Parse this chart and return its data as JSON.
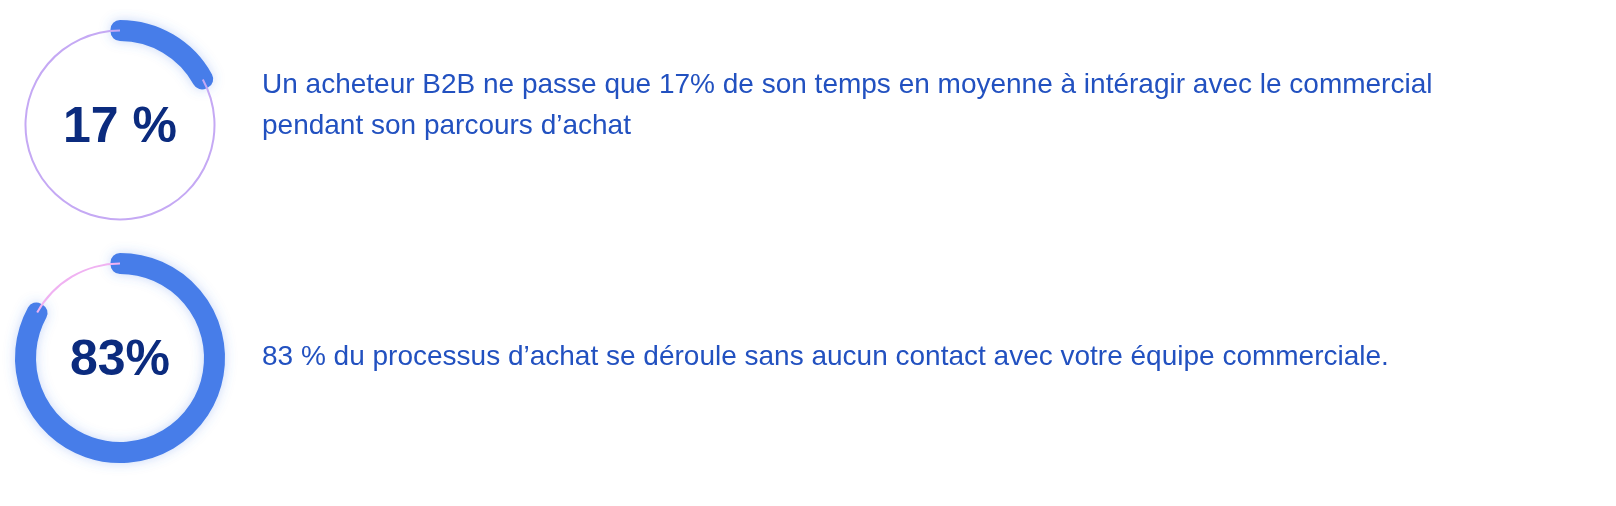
{
  "chart_data": [
    {
      "type": "donut",
      "categories": [
        null,
        null
      ],
      "values": [
        17,
        83
      ],
      "colors": [
        "#477de9",
        "#c5a9f4"
      ],
      "annotations": [
        "17 %",
        "Un acheteur B2B ne passe que 17% de son temps en moyenne à intéragir avec le commercial pendant son parcours d’achat"
      ]
    },
    {
      "type": "donut",
      "categories": [
        null,
        null
      ],
      "values": [
        83,
        17
      ],
      "colors": [
        "#477de9",
        "#f0b2f2"
      ],
      "annotations": [
        "83%",
        "83 % du processus d’achat se déroule sans aucun contact avec votre équipe commerciale."
      ]
    }
  ]
}
